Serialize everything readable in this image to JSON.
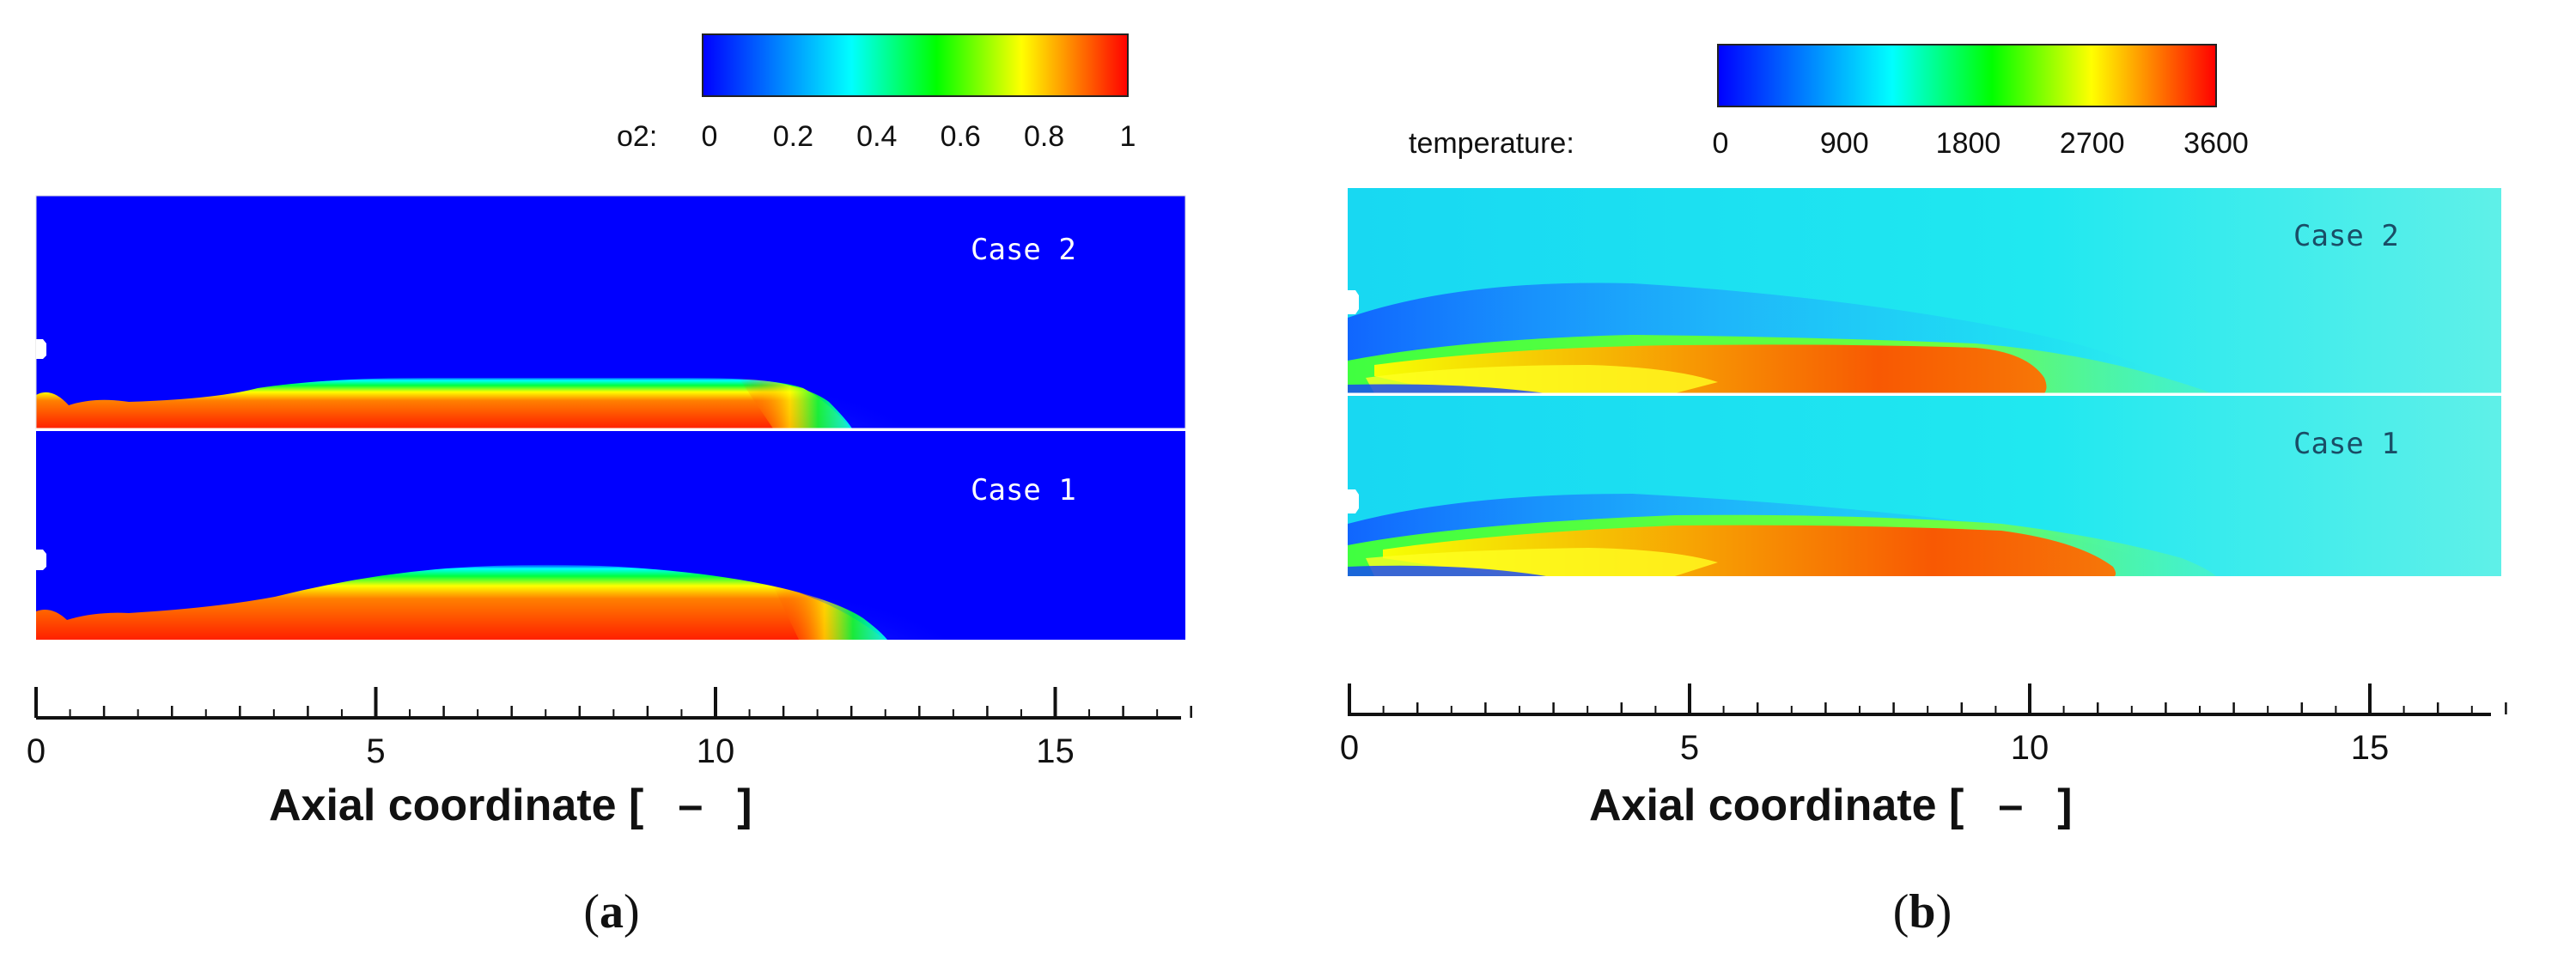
{
  "chart_data": [
    {
      "type": "heatmap",
      "panel_label": "a",
      "colorbar": {
        "variable": "o2:",
        "ticks": [
          "0",
          "0.2",
          "0.4",
          "0.6",
          "0.8",
          "1"
        ],
        "range": [
          0,
          1
        ]
      },
      "cases": [
        "Case 2",
        "Case 1"
      ],
      "x_axis": {
        "label_main": "Axial coordinate [",
        "label_unit": "–",
        "label_end": "]",
        "ticks": [
          0,
          5,
          10,
          15
        ],
        "range": [
          0,
          17
        ]
      },
      "colors": [
        "#0000ff",
        "#00ffff",
        "#00ff00",
        "#ffff00",
        "#ff0000"
      ]
    },
    {
      "type": "heatmap",
      "panel_label": "b",
      "colorbar": {
        "variable": "temperature:",
        "ticks": [
          "0",
          "900",
          "1800",
          "2700",
          "3600"
        ],
        "range": [
          0,
          3600
        ]
      },
      "cases": [
        "Case 2",
        "Case 1"
      ],
      "x_axis": {
        "label_main": "Axial coordinate [",
        "label_unit": "–",
        "label_end": "]",
        "ticks": [
          0,
          5,
          10,
          15
        ],
        "range": [
          0,
          17
        ]
      },
      "colors": [
        "#0000ff",
        "#00ffff",
        "#00ff00",
        "#ffff00",
        "#ff0000"
      ]
    }
  ]
}
